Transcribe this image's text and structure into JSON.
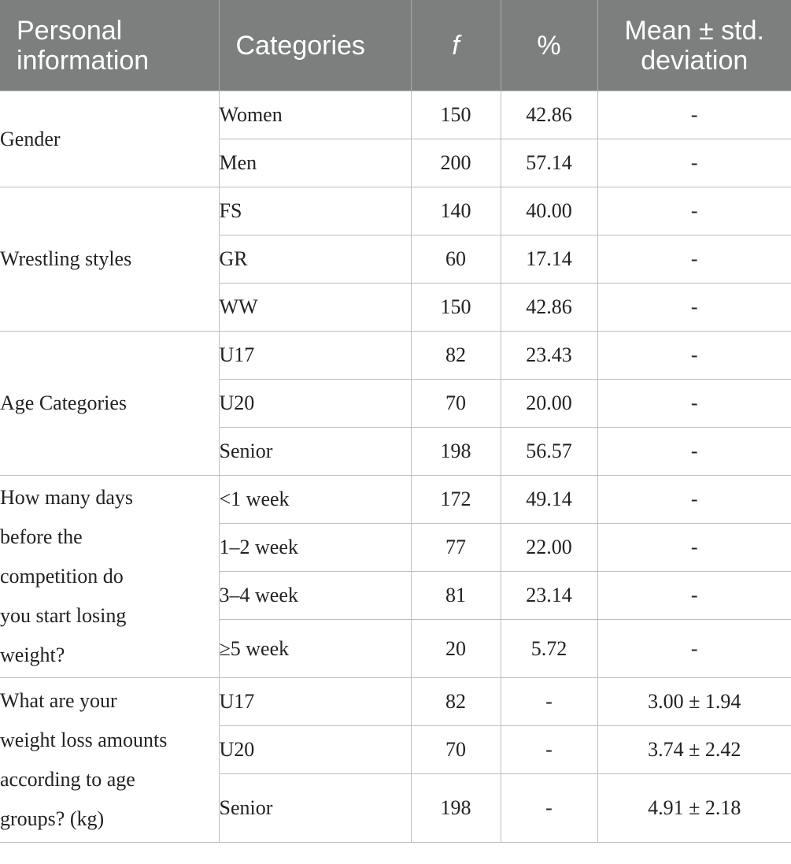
{
  "header": {
    "col1_line1": "Personal",
    "col1_line2": "information",
    "col2": "Categories",
    "col3": "f",
    "col4": "%",
    "col5_line1": "Mean ± std.",
    "col5_line2": "deviation"
  },
  "groups": [
    {
      "label": "Gender",
      "rows": [
        {
          "category": "Women",
          "f": "150",
          "pct": "42.86",
          "mean": "-"
        },
        {
          "category": "Men",
          "f": "200",
          "pct": "57.14",
          "mean": "-"
        }
      ]
    },
    {
      "label": "Wrestling styles",
      "rows": [
        {
          "category": "FS",
          "f": "140",
          "pct": "40.00",
          "mean": "-"
        },
        {
          "category": "GR",
          "f": "60",
          "pct": "17.14",
          "mean": "-"
        },
        {
          "category": "WW",
          "f": "150",
          "pct": "42.86",
          "mean": "-"
        }
      ]
    },
    {
      "label": "Age Categories",
      "rows": [
        {
          "category": "U17",
          "f": "82",
          "pct": "23.43",
          "mean": "-"
        },
        {
          "category": "U20",
          "f": "70",
          "pct": "20.00",
          "mean": "-"
        },
        {
          "category": "Senior",
          "f": "198",
          "pct": "56.57",
          "mean": "-"
        }
      ]
    },
    {
      "label": "How many days before the competition do you start losing weight?",
      "label_lines": [
        "How many days",
        "before the",
        "competition do",
        "you start losing",
        "weight?"
      ],
      "rows": [
        {
          "category": "<1 week",
          "f": "172",
          "pct": "49.14",
          "mean": "-"
        },
        {
          "category": "1–2 week",
          "f": "77",
          "pct": "22.00",
          "mean": "-"
        },
        {
          "category": "3–4 week",
          "f": "81",
          "pct": "23.14",
          "mean": "-"
        },
        {
          "category": "≥5 week",
          "f": "20",
          "pct": "5.72",
          "mean": "-"
        }
      ]
    },
    {
      "label": "What are your weight loss amounts according to age groups? (kg)",
      "label_lines": [
        "What are your",
        "weight loss amounts",
        "according to age",
        "groups? (kg)"
      ],
      "rows": [
        {
          "category": "U17",
          "f": "82",
          "pct": "-",
          "mean": "3.00 ± 1.94"
        },
        {
          "category": "U20",
          "f": "70",
          "pct": "-",
          "mean": "3.74 ± 2.42"
        },
        {
          "category": "Senior",
          "f": "198",
          "pct": "-",
          "mean": "4.91 ± 2.18"
        }
      ]
    }
  ]
}
